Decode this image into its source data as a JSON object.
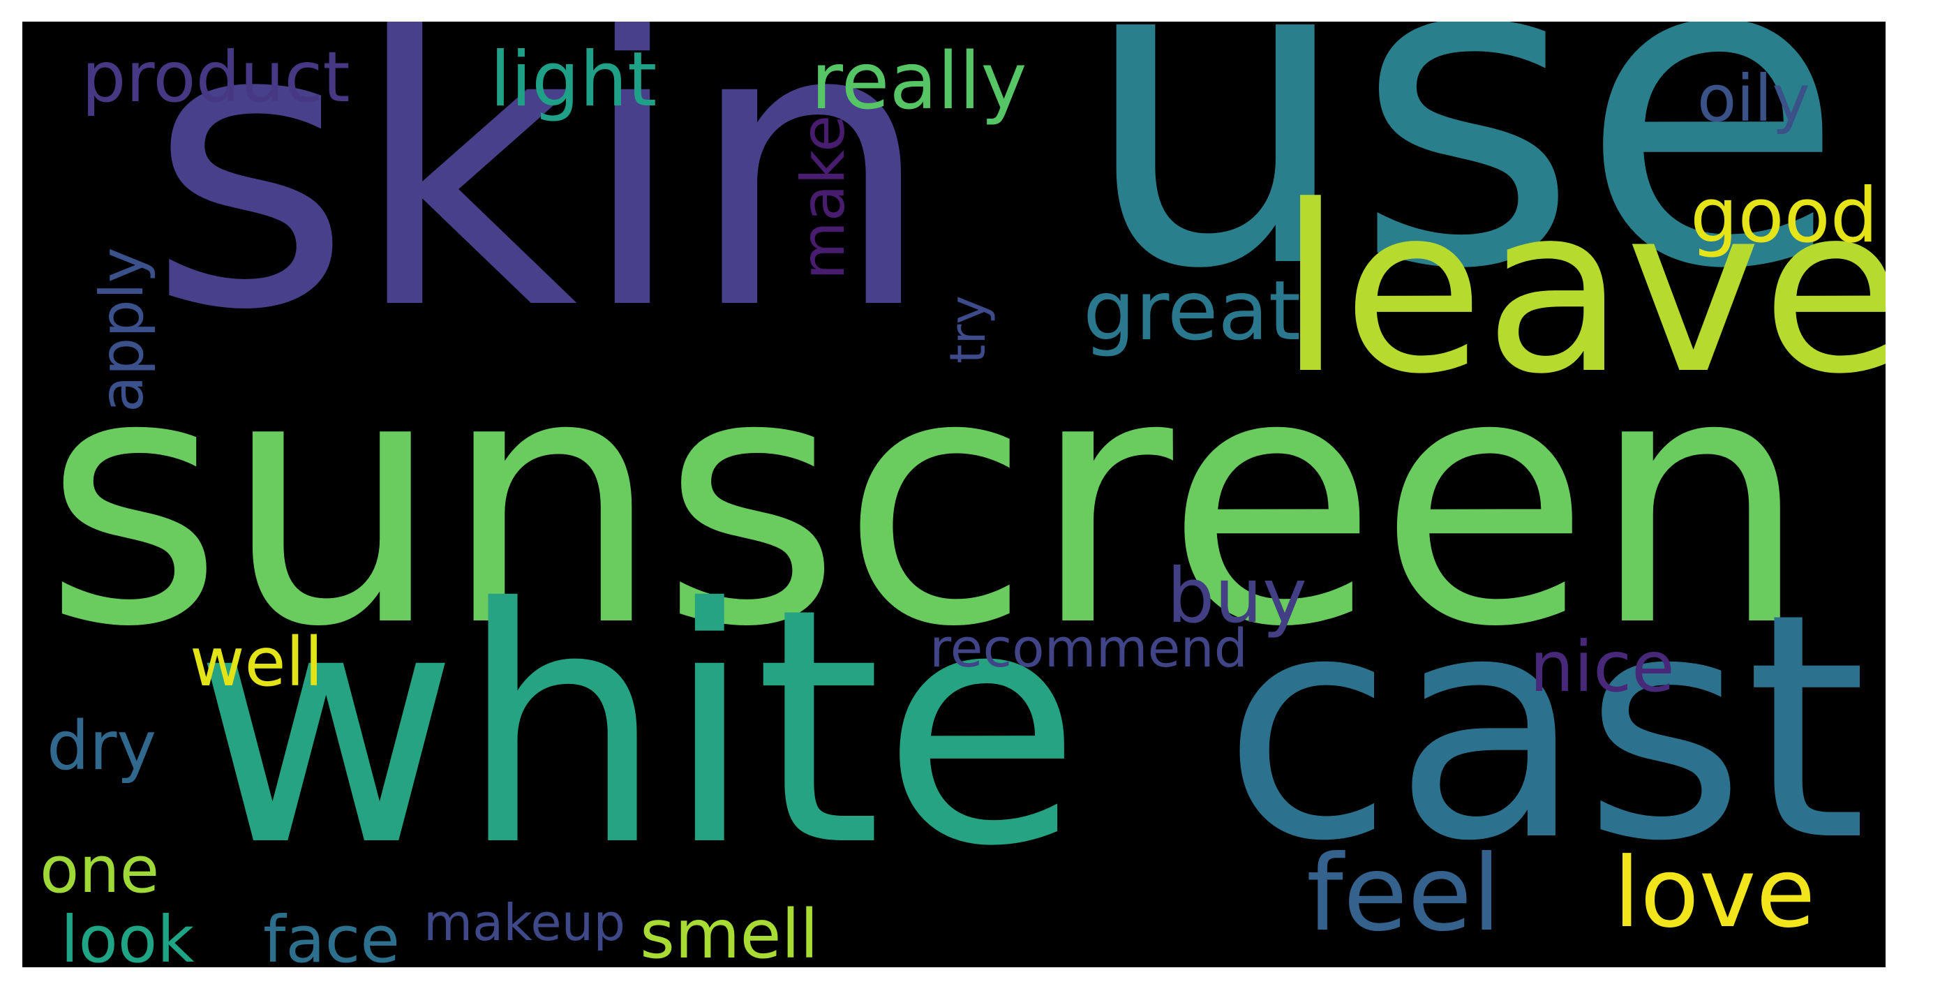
{
  "words": [
    {
      "id": "skin",
      "text": "skin",
      "color": "#48408a"
    },
    {
      "id": "use",
      "text": "use",
      "color": "#2a7f8d"
    },
    {
      "id": "sunscreen",
      "text": "sunscreen",
      "color": "#6acb5e"
    },
    {
      "id": "white",
      "text": "white",
      "color": "#25a383"
    },
    {
      "id": "cast",
      "text": "cast",
      "color": "#2c728e"
    },
    {
      "id": "leave",
      "text": "leave",
      "color": "#b6db2e"
    },
    {
      "id": "love",
      "text": "love",
      "color": "#f2e51c"
    },
    {
      "id": "feel",
      "text": "feel",
      "color": "#35618d"
    },
    {
      "id": "great",
      "text": "great",
      "color": "#2a788e"
    },
    {
      "id": "good",
      "text": "good",
      "color": "#e5e419"
    },
    {
      "id": "oily",
      "text": "oily",
      "color": "#3a5288"
    },
    {
      "id": "really",
      "text": "really",
      "color": "#56c566"
    },
    {
      "id": "light",
      "text": "light",
      "color": "#1fa187"
    },
    {
      "id": "product",
      "text": "product",
      "color": "#463883"
    },
    {
      "id": "buy",
      "text": "buy",
      "color": "#423f85"
    },
    {
      "id": "recommend",
      "text": "recommend",
      "color": "#414487"
    },
    {
      "id": "nice",
      "text": "nice",
      "color": "#482878"
    },
    {
      "id": "well",
      "text": "well",
      "color": "#e2e418"
    },
    {
      "id": "dry",
      "text": "dry",
      "color": "#31688e"
    },
    {
      "id": "one",
      "text": "one",
      "color": "#9fd938"
    },
    {
      "id": "look",
      "text": "look",
      "color": "#20a486"
    },
    {
      "id": "face",
      "text": "face",
      "color": "#2d708e"
    },
    {
      "id": "makeup",
      "text": "makeup",
      "color": "#3f4889"
    },
    {
      "id": "smell",
      "text": "smell",
      "color": "#a8db34"
    },
    {
      "id": "apply",
      "text": "apply",
      "color": "#3b518b"
    },
    {
      "id": "make",
      "text": "make",
      "color": "#481c6e"
    },
    {
      "id": "try",
      "text": "try",
      "color": "#3e4a89"
    }
  ],
  "background_color": "#000000"
}
